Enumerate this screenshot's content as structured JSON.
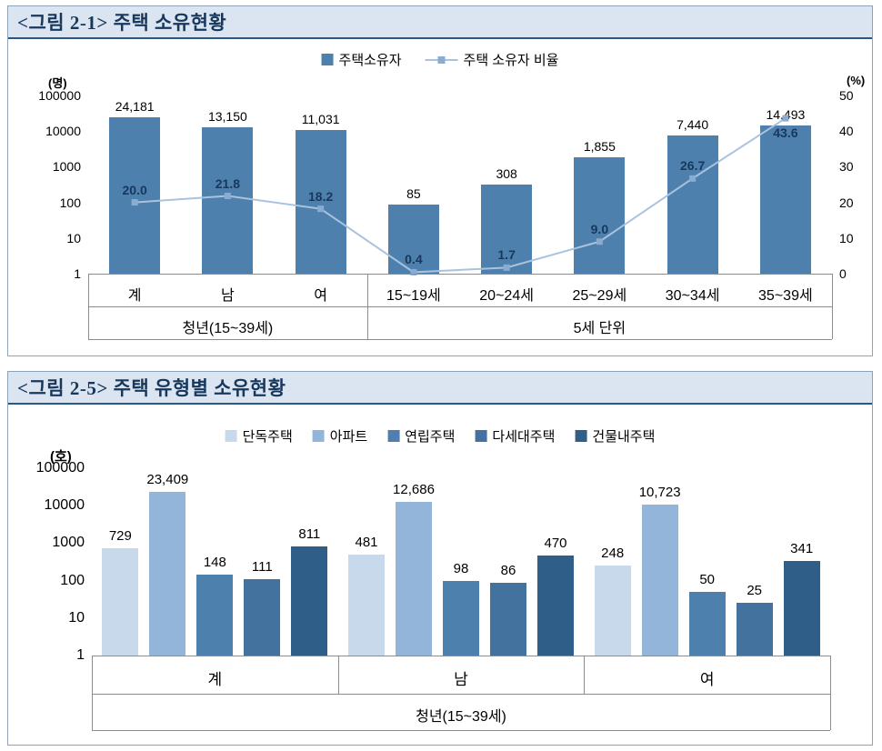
{
  "fig1": {
    "title": "<그림 2-1> 주택 소유현황",
    "left_axis_unit": "(명)",
    "right_axis_unit": "(%)",
    "legend": [
      {
        "label": "주택소유자",
        "type": "bar",
        "color": "#4e80ad"
      },
      {
        "label": "주택 소유자 비율",
        "type": "line",
        "color": "#a9c3de",
        "marker_color": "#8aacd0"
      }
    ],
    "chart_data": {
      "type": "bar+line",
      "categories": [
        "계",
        "남",
        "여",
        "15~19세",
        "20~24세",
        "25~29세",
        "30~34세",
        "35~39세"
      ],
      "groups": [
        {
          "label": "청년(15~39세)",
          "span": 3
        },
        {
          "label": "5세 단위",
          "span": 5
        }
      ],
      "bar_series": {
        "name": "주택소유자",
        "values": [
          24181,
          13150,
          11031,
          85,
          308,
          1855,
          7440,
          14493
        ],
        "labels": [
          "24,181",
          "13,150",
          "11,031",
          "85",
          "308",
          "1,855",
          "7,440",
          "14,493"
        ]
      },
      "line_series": {
        "name": "주택 소유자 비율",
        "values": [
          20.0,
          21.8,
          18.2,
          0.4,
          1.7,
          9.0,
          26.7,
          43.6
        ],
        "labels": [
          "20.0",
          "21.8",
          "18.2",
          "0.4",
          "1.7",
          "9.0",
          "26.7",
          "43.6"
        ]
      },
      "left_axis": {
        "scale": "log",
        "min": 1,
        "max": 100000,
        "ticks": [
          "100000",
          "10000",
          "1000",
          "100",
          "10",
          "1"
        ]
      },
      "right_axis": {
        "scale": "linear",
        "min": 0,
        "max": 50,
        "ticks": [
          "50",
          "40",
          "30",
          "20",
          "10",
          "0"
        ]
      }
    }
  },
  "fig2": {
    "title": "<그림 2-5> 주택 유형별 소유현황",
    "left_axis_unit": "(호)",
    "chart_data": {
      "type": "grouped-bar",
      "categories": [
        "계",
        "남",
        "여"
      ],
      "group_label": "청년(15~39세)",
      "series": [
        {
          "name": "단독주택",
          "color": "#c9d9ec",
          "values": [
            729,
            481,
            248
          ]
        },
        {
          "name": "아파트",
          "color": "#94b5da",
          "values": [
            23409,
            12686,
            10723
          ]
        },
        {
          "name": "연립주택",
          "color": "#4e80ad",
          "values": [
            148,
            98,
            50
          ]
        },
        {
          "name": "다세대주택",
          "color": "#43729e",
          "values": [
            111,
            86,
            25
          ]
        },
        {
          "name": "건물내주택",
          "color": "#2f5e88",
          "values": [
            811,
            470,
            341
          ]
        }
      ],
      "value_labels": [
        [
          "729",
          "23,409",
          "148",
          "111",
          "811"
        ],
        [
          "481",
          "12,686",
          "98",
          "86",
          "470"
        ],
        [
          "248",
          "10,723",
          "50",
          "25",
          "341"
        ]
      ],
      "left_axis": {
        "scale": "log",
        "min": 1,
        "max": 100000,
        "ticks": [
          "100000",
          "10000",
          "1000",
          "100",
          "10",
          "1"
        ]
      }
    }
  }
}
